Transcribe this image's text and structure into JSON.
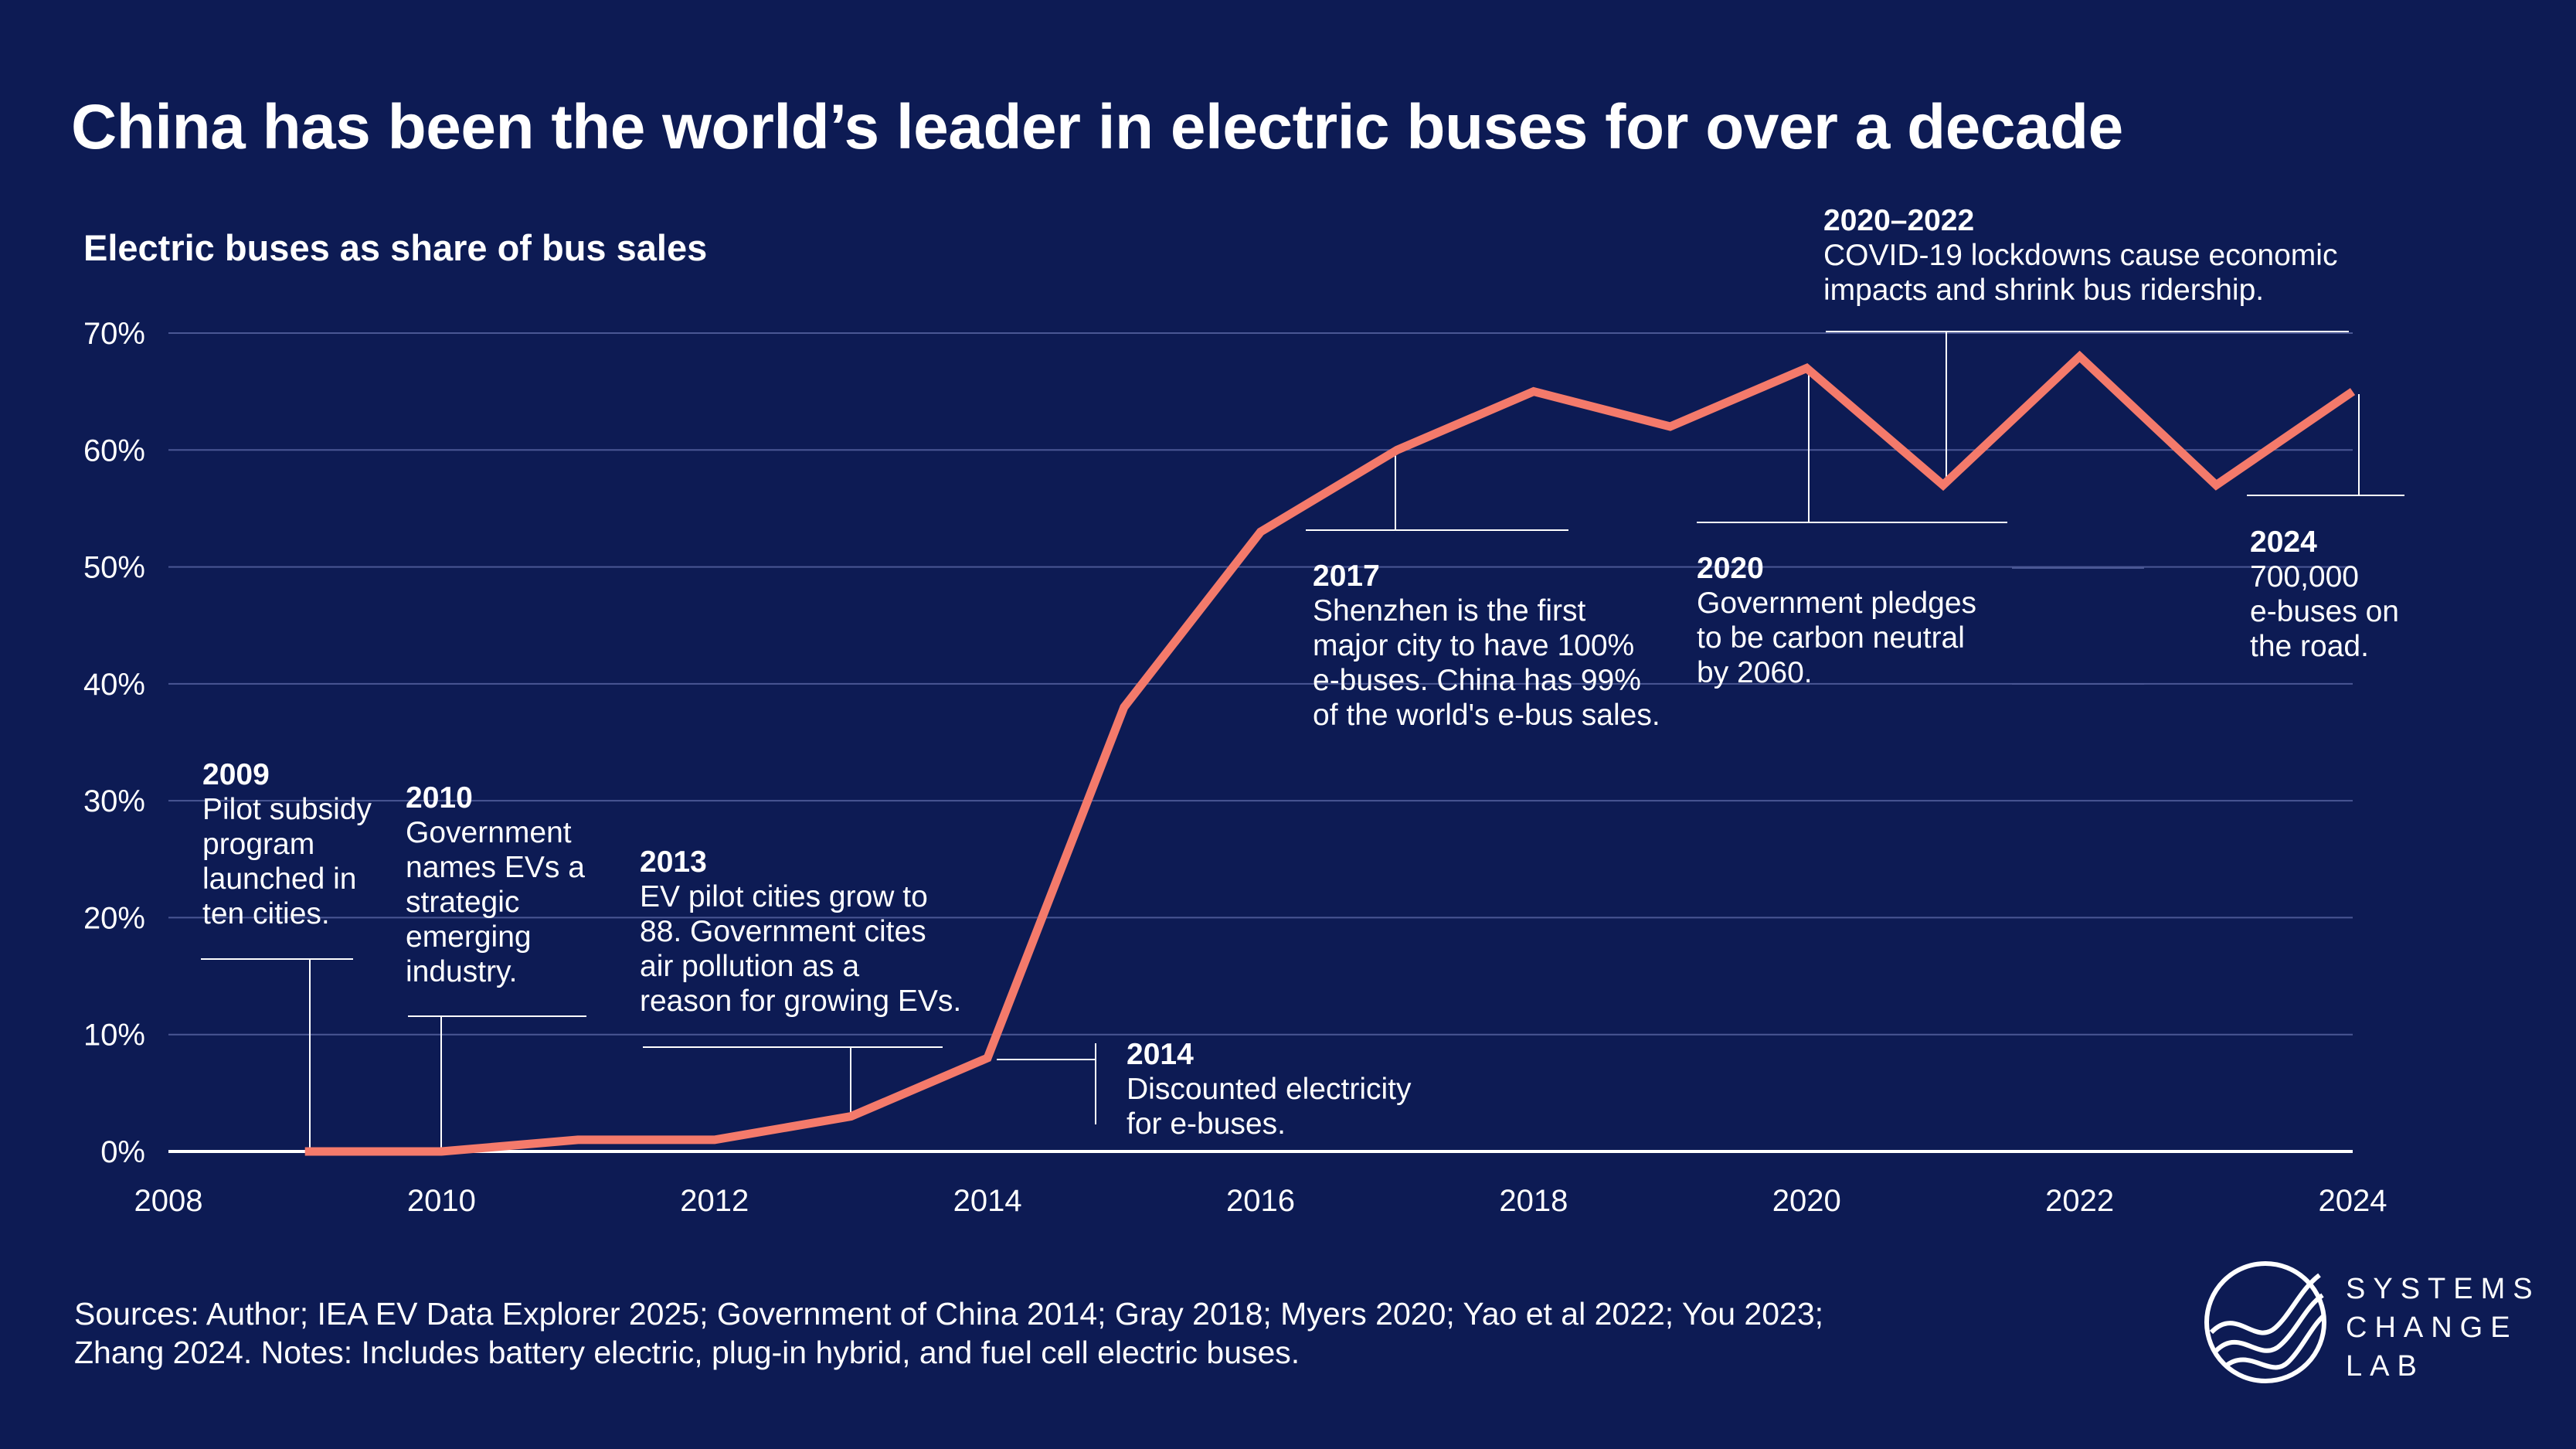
{
  "title": "China has been the world’s leader in electric buses for over a decade",
  "colors": {
    "background": "#0d1b54",
    "line": "#f47a6b",
    "grid": "#4a5794",
    "text": "#ffffff"
  },
  "chart_data": {
    "type": "line",
    "subtitle": "Electric buses as share of bus sales",
    "xlabel": "",
    "ylabel": "",
    "x": [
      2009,
      2010,
      2011,
      2012,
      2013,
      2014,
      2015,
      2016,
      2017,
      2018,
      2019,
      2020,
      2021,
      2022,
      2023,
      2024
    ],
    "series": [
      {
        "name": "Electric bus share of bus sales (%)",
        "values": [
          0,
          0,
          1,
          1,
          3,
          8,
          38,
          53,
          60,
          65,
          62,
          67,
          57,
          68,
          57,
          65
        ]
      }
    ],
    "xlim": [
      2008,
      2024
    ],
    "ylim": [
      0,
      70
    ],
    "xticks": [
      2008,
      2010,
      2012,
      2014,
      2016,
      2018,
      2020,
      2022,
      2024
    ],
    "xtick_labels": [
      "2008",
      "2010",
      "2012",
      "2014",
      "2016",
      "2018",
      "2020",
      "2022",
      "2024"
    ],
    "yticks": [
      0,
      10,
      20,
      30,
      40,
      50,
      60,
      70
    ],
    "ytick_labels": [
      "0%",
      "10%",
      "20%",
      "30%",
      "40%",
      "50%",
      "60%",
      "70%"
    ],
    "grid": true,
    "annotations": [
      {
        "year": "2009",
        "text": [
          "Pilot subsidy",
          "program",
          "launched in",
          "ten cities."
        ]
      },
      {
        "year": "2010",
        "text": [
          "Government",
          "names EVs a",
          "strategic",
          "emerging",
          "industry."
        ]
      },
      {
        "year": "2013",
        "text": [
          "EV pilot cities grow to",
          "88. Government cites",
          "air pollution as a",
          "reason for growing EVs."
        ]
      },
      {
        "year": "2014",
        "text": [
          "Discounted electricity",
          "for e-buses."
        ]
      },
      {
        "year": "2017",
        "text": [
          "Shenzhen is the first",
          "major city to have 100%",
          "e-buses. China has 99%",
          "of the world's e-bus sales."
        ]
      },
      {
        "year": "2020",
        "text": [
          "Government pledges",
          "to be carbon neutral",
          "by 2060."
        ]
      },
      {
        "year": "2020–2022",
        "text": [
          "COVID-19 lockdowns cause economic",
          "impacts and shrink bus ridership."
        ]
      },
      {
        "year": "2024",
        "text": [
          "700,000",
          "e-buses on",
          "the road."
        ]
      }
    ]
  },
  "footer": {
    "line1": "Sources: Author; IEA EV Data Explorer 2025; Government of China 2014; Gray 2018; Myers 2020; Yao et al 2022; You 2023;",
    "line2": "Zhang 2024. Notes: Includes battery electric, plug-in hybrid, and fuel cell electric buses."
  },
  "logo": {
    "line1": "SYSTEMS",
    "line2": "CHANGE",
    "line3": "LAB"
  }
}
